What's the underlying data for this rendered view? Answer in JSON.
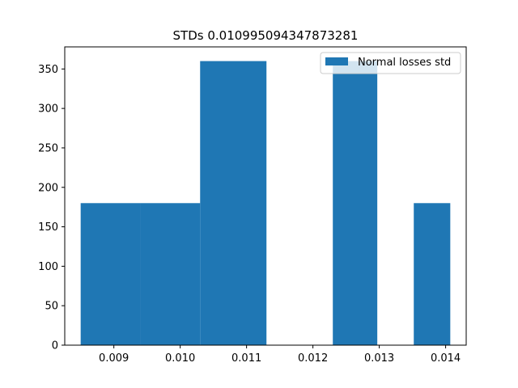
{
  "chart_data": {
    "type": "bar",
    "title": "STDs 0.010995094347873281",
    "xlabel": "",
    "ylabel": "",
    "xlim": [
      0.00826,
      0.01431
    ],
    "ylim": [
      0,
      378
    ],
    "bins": [
      {
        "x0": 0.0085,
        "x1": 0.0094,
        "count": 180
      },
      {
        "x0": 0.0094,
        "x1": 0.0103,
        "count": 180
      },
      {
        "x0": 0.0103,
        "x1": 0.0113,
        "count": 360
      },
      {
        "x0": 0.0113,
        "x1": 0.0123,
        "count": 0
      },
      {
        "x0": 0.0123,
        "x1": 0.01297,
        "count": 360
      },
      {
        "x0": 0.01297,
        "x1": 0.01352,
        "count": 0
      },
      {
        "x0": 0.01352,
        "x1": 0.01407,
        "count": 180
      }
    ],
    "x_ticks": [
      "0.009",
      "0.010",
      "0.011",
      "0.012",
      "0.013",
      "0.014"
    ],
    "x_tick_values": [
      0.009,
      0.01,
      0.011,
      0.012,
      0.013,
      0.014
    ],
    "y_ticks": [
      "0",
      "50",
      "100",
      "150",
      "200",
      "250",
      "300",
      "350"
    ],
    "y_tick_values": [
      0,
      50,
      100,
      150,
      200,
      250,
      300,
      350
    ],
    "series": [
      {
        "name": "Normal losses std",
        "color": "#1f77b4"
      }
    ],
    "legend_position": "top-right",
    "grid": false
  }
}
